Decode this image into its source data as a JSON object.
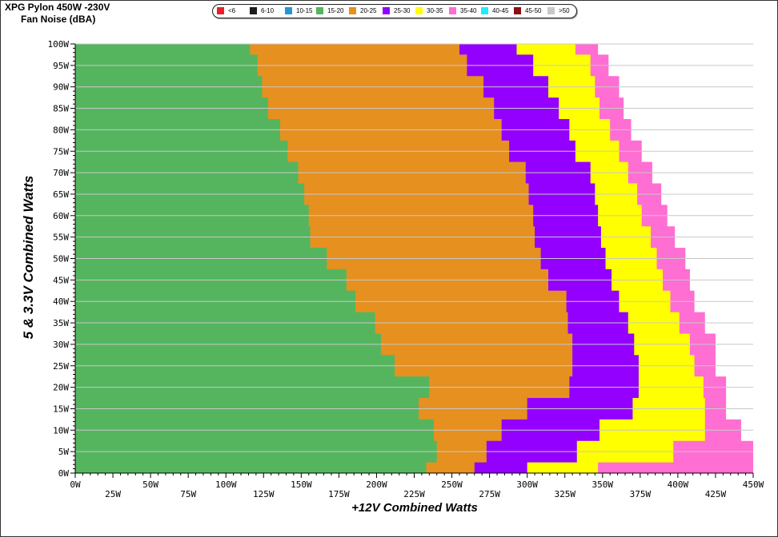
{
  "header": {
    "title": "XPG Pylon 450W -230V",
    "subtitle": "Fan Noise (dBA)"
  },
  "legend": [
    {
      "label": "<6",
      "color": "#e8202a"
    },
    {
      "label": "6-10",
      "color": "#1c1c1c"
    },
    {
      "label": "10-15",
      "color": "#2596d4"
    },
    {
      "label": "15-20",
      "color": "#55b55e"
    },
    {
      "label": "20-25",
      "color": "#e69020"
    },
    {
      "label": "25-30",
      "color": "#9400ff"
    },
    {
      "label": "30-35",
      "color": "#ffff00"
    },
    {
      "label": "35-40",
      "color": "#ff6ed2"
    },
    {
      "label": "40-45",
      "color": "#22eaff"
    },
    {
      "label": "45-50",
      "color": "#8b1010"
    },
    {
      "label": ">50",
      "color": "#c8c8c8"
    }
  ],
  "chart_data": {
    "type": "heatmap",
    "title": "XPG Pylon 450W -230V",
    "subtitle": "Fan Noise (dBA)",
    "xlabel": "+12V Combined Watts",
    "ylabel": "5 & 3.3V Combined Watts",
    "xlim": [
      0,
      450
    ],
    "ylim": [
      0,
      100
    ],
    "x_ticks": [
      "0W",
      "25W",
      "50W",
      "75W",
      "100W",
      "125W",
      "150W",
      "175W",
      "200W",
      "225W",
      "250W",
      "275W",
      "300W",
      "325W",
      "350W",
      "375W",
      "400W",
      "425W",
      "450W"
    ],
    "y_ticks": [
      "0W",
      "5W",
      "10W",
      "15W",
      "20W",
      "25W",
      "30W",
      "35W",
      "40W",
      "45W",
      "50W",
      "55W",
      "60W",
      "65W",
      "70W",
      "75W",
      "80W",
      "85W",
      "90W",
      "95W",
      "100W"
    ],
    "grid": true,
    "band_upper_bounds_watts": {
      "y": [
        0,
        5,
        10,
        15,
        20,
        25,
        30,
        35,
        40,
        45,
        50,
        55,
        60,
        65,
        70,
        75,
        80,
        85,
        90,
        95,
        100
      ],
      "15-20": [
        233,
        240,
        238,
        228,
        235,
        212,
        203,
        199,
        186,
        180,
        167,
        156,
        155,
        152,
        148,
        141,
        136,
        128,
        124,
        121,
        116
      ],
      "20-25": [
        265,
        273,
        283,
        300,
        328,
        330,
        330,
        327,
        326,
        314,
        309,
        305,
        304,
        301,
        299,
        288,
        283,
        278,
        271,
        260,
        255
      ],
      "25-30": [
        300,
        333,
        348,
        370,
        374,
        374,
        371,
        367,
        361,
        356,
        352,
        349,
        347,
        345,
        342,
        332,
        328,
        321,
        314,
        304,
        293
      ],
      "30-35": [
        347,
        397,
        418,
        418,
        417,
        411,
        408,
        401,
        395,
        390,
        386,
        382,
        376,
        373,
        367,
        361,
        355,
        348,
        345,
        342,
        332
      ],
      "35-40": [
        450,
        450,
        442,
        432,
        432,
        425,
        425,
        418,
        411,
        408,
        405,
        398,
        393,
        389,
        383,
        376,
        369,
        364,
        361,
        354,
        347
      ]
    }
  }
}
